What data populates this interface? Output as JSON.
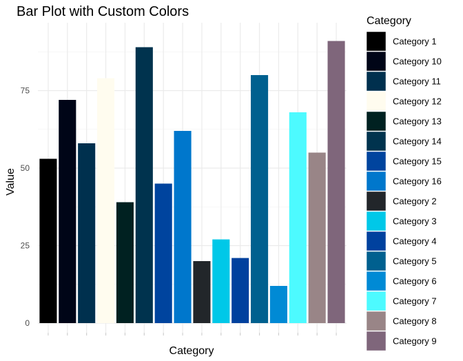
{
  "chart_data": {
    "type": "bar",
    "title": "Bar Plot with Custom Colors",
    "xlabel": "Category",
    "ylabel": "Value",
    "ylim": [
      0,
      93
    ],
    "yticks": [
      0,
      25,
      50,
      75
    ],
    "grid": true,
    "x_tick_labels_shown": false,
    "legend": {
      "title": "Category",
      "placement": "right"
    },
    "categories": [
      "Category 1",
      "Category 10",
      "Category 11",
      "Category 12",
      "Category 13",
      "Category 14",
      "Category 15",
      "Category 16",
      "Category 2",
      "Category 3",
      "Category 4",
      "Category 5",
      "Category 6",
      "Category 7",
      "Category 8",
      "Category 9"
    ],
    "values": [
      53,
      72,
      58,
      79,
      39,
      89,
      45,
      62,
      20,
      27,
      21,
      80,
      12,
      68,
      55,
      91
    ],
    "colors": [
      "#000000",
      "#000517",
      "#00304e",
      "#fffcef",
      "#002121",
      "#00334e",
      "#00449e",
      "#0077cc",
      "#22262a",
      "#00c8e8",
      "#00419e",
      "#00608f",
      "#008ad5",
      "#4dfaff",
      "#998587",
      "#7f667b"
    ]
  }
}
